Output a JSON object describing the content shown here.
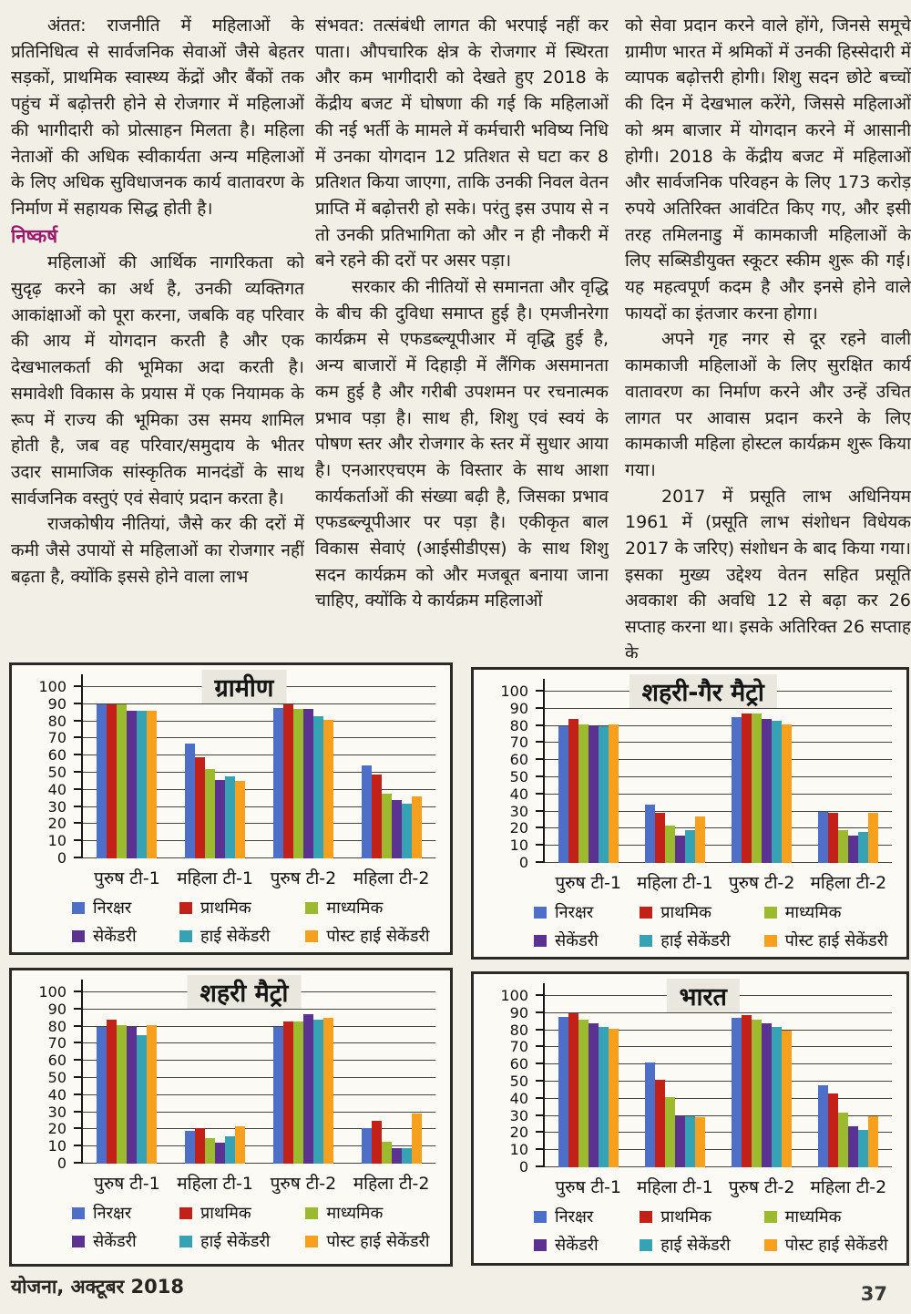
{
  "page": {
    "footer_left": "योजना, अक्टूबर 2018",
    "page_number": "37"
  },
  "article": {
    "columns": [
      {
        "blocks": [
          {
            "type": "para",
            "indent": true,
            "text": "अंतत: राजनीति में महिलाओं के प्रतिनिधित्व से सार्वजनिक सेवाओं जैसे बेहतर सड़कों, प्राथमिक स्वास्थ्य केंद्रों और बैंकों तक पहुंच में बढ़ोत्तरी होने से रोजगार में महिलाओं की भागीदारी को प्रोत्साहन मिलता है। महिला नेताओं की अधिक स्वीकार्यता अन्य महिलाओं के लिए अधिक सुविधाजनक कार्य वातावरण के निर्माण में सहायक सिद्ध होती है।"
          },
          {
            "type": "heading",
            "indent": false,
            "text": "निष्कर्ष"
          },
          {
            "type": "para",
            "indent": true,
            "text": "महिलाओं की आर्थिक नागरिकता को सुदृढ़ करने का अर्थ है, उनकी व्यक्तिगत आकांक्षाओं को पूरा करना, जबकि वह परिवार की आय में योगदान करती है और एक देखभालकर्ता की भूमिका अदा करती है। समावेशी विकास के प्रयास में एक नियामक के रूप में राज्य की भूमिका उस समय शामिल होती है, जब वह परिवार/समुदाय के भीतर उदार सामाजिक सांस्कृतिक मानदंडों के साथ सार्वजनिक वस्तुएं एवं सेवाएं प्रदान करता है।"
          },
          {
            "type": "para",
            "indent": true,
            "text": "राजकोषीय नीतियां, जैसे कर की दरों में कमी जैसे उपायों से महिलाओं का रोजगार नहीं बढ़ता है, क्योंकि इससे होने वाला लाभ"
          }
        ]
      },
      {
        "blocks": [
          {
            "type": "para",
            "indent": false,
            "text": "संभवत: तत्संबंधी लागत की भरपाई नहीं कर पाता। औपचारिक क्षेत्र के रोजगार में स्थिरता और कम भागीदारी को देखते हुए 2018 के केंद्रीय बजट में घोषणा की गई कि महिलाओं की नई भर्ती के मामले में कर्मचारी भविष्य निधि में उनका योगदान 12 प्रतिशत से घटा कर 8 प्रतिशत किया जाएगा, ताकि उनकी निवल वेतन प्राप्ति में बढ़ोत्तरी हो सके। परंतु इस उपाय से न तो उनकी प्रतिभागिता को और न ही नौकरी में बने रहने की दरों पर असर पड़ा।"
          },
          {
            "type": "para",
            "indent": true,
            "text": "सरकार की नीतियों से समानता और वृद्धि के बीच की दुविधा समाप्त हुई है। एमजीनरेगा कार्यक्रम से एफडब्ल्यूपीआर में वृद्धि हुई है, अन्य बाजारों में दिहाड़ी में लैंगिक असमानता कम हुई है और गरीबी उपशमन पर रचनात्मक प्रभाव पड़ा है। साथ ही, शिशु एवं स्वयं के पोषण स्तर और रोजगार के स्तर में सुधार आया है। एनआरएचएम के विस्तार के साथ आशा कार्यकर्ताओं की संख्या बढ़ी है, जिसका प्रभाव एफडब्ल्यूपीआर पर पड़ा है। एकीकृत बाल विकास सेवाएं (आईसीडीएस) के साथ शिशु सदन कार्यक्रम को और मजबूत बनाया जाना चाहिए, क्योंकि ये कार्यक्रम महिलाओं"
          }
        ]
      },
      {
        "blocks": [
          {
            "type": "para",
            "indent": false,
            "text": "को सेवा प्रदान करने वाले होंगे, जिनसे समूचे ग्रामीण भारत में श्रमिकों में उनकी हिस्सेदारी में व्यापक बढ़ोत्तरी होगी। शिशु सदन छोटे बच्चों की दिन में देखभाल करेंगे, जिससे महिलाओं को श्रम बाजार में योगदान करने में आसानी होगी। 2018 के केंद्रीय बजट में महिलाओं और सार्वजनिक परिवहन के लिए 173 करोड़ रुपये अतिरिक्त आवंटित किए गए, और इसी तरह तमिलनाडु में कामकाजी महिलाओं के लिए सब्सिडीयुक्त स्कूटर स्कीम शुरू की गई। यह महत्वपूर्ण कदम है और इनसे होने वाले फायदों का इंतजार करना होगा।"
          },
          {
            "type": "para",
            "indent": true,
            "text": "अपने गृह नगर से दूर रहने वाली कामकाजी महिलाओं के लिए सुरक्षित कार्य वातावरण का निर्माण करने और उन्हें उचित लागत पर आवास प्रदान करने के लिए कामकाजी महिला होस्टल कार्यक्रम शुरू किया गया।"
          },
          {
            "type": "para",
            "indent": true,
            "text": "2017 में प्रसूति लाभ अधिनियम 1961 में (प्रसूति लाभ संशोधन विधेयक 2017 के जरिए) संशोधन के बाद किया गया। इसका मुख्य उद्देश्य वेतन सहित प्रसूति अवकाश की अवधि 12 से बढ़ा कर 26 सप्ताह करना था। इसके अतिरिक्त 26 सप्ताह के"
          }
        ]
      }
    ]
  },
  "chart_data": [
    {
      "type": "bar",
      "title": "ग्रामीण",
      "categories": [
        "पुरुष टी-1",
        "महिला टी-1",
        "पुरुष टी-2",
        "महिला टी-2"
      ],
      "series": [
        {
          "name": "निरक्षर",
          "color": "#4e6fc8",
          "values": [
            90,
            67,
            88,
            54
          ]
        },
        {
          "name": "प्राथमिक",
          "color": "#c32017",
          "values": [
            90,
            59,
            90,
            49
          ]
        },
        {
          "name": "माध्यमिक",
          "color": "#9cba2e",
          "values": [
            90,
            52,
            87,
            38
          ]
        },
        {
          "name": "सेकेंडरी",
          "color": "#5b3191",
          "values": [
            86,
            46,
            87,
            34
          ]
        },
        {
          "name": "हाई सेकेंडरी",
          "color": "#36a3b4",
          "values": [
            86,
            48,
            83,
            32
          ]
        },
        {
          "name": "पोस्ट हाई सेकेंडरी",
          "color": "#f7a01e",
          "values": [
            86,
            45,
            81,
            36
          ]
        }
      ],
      "ylim": [
        0,
        100
      ],
      "yticks": [
        0,
        10,
        20,
        30,
        40,
        50,
        60,
        70,
        80,
        90,
        100
      ],
      "grid": "horizontal",
      "legend_position": "bottom"
    },
    {
      "type": "bar",
      "title": "शहरी-गैर मैट्रो",
      "categories": [
        "पुरुष टी-1",
        "महिला टी-1",
        "पुरुष टी-2",
        "महिला टी-2"
      ],
      "series": [
        {
          "name": "निरक्षर",
          "color": "#4e6fc8",
          "values": [
            80,
            34,
            85,
            30
          ]
        },
        {
          "name": "प्राथमिक",
          "color": "#c32017",
          "values": [
            84,
            29,
            87,
            29
          ]
        },
        {
          "name": "माध्यमिक",
          "color": "#9cba2e",
          "values": [
            81,
            22,
            87,
            19
          ]
        },
        {
          "name": "सेकेंडरी",
          "color": "#5b3191",
          "values": [
            80,
            16,
            84,
            16
          ]
        },
        {
          "name": "हाई सेकेंडरी",
          "color": "#36a3b4",
          "values": [
            80,
            19,
            83,
            18
          ]
        },
        {
          "name": "पोस्ट हाई सेकेंडरी",
          "color": "#f7a01e",
          "values": [
            81,
            27,
            81,
            29
          ]
        }
      ],
      "ylim": [
        0,
        100
      ],
      "yticks": [
        0,
        10,
        20,
        30,
        40,
        50,
        60,
        70,
        80,
        90,
        100
      ],
      "grid": "horizontal",
      "legend_position": "bottom"
    },
    {
      "type": "bar",
      "title": "शहरी मैट्रो",
      "categories": [
        "पुरुष टी-1",
        "महिला टी-1",
        "पुरुष टी-2",
        "महिला टी-2"
      ],
      "series": [
        {
          "name": "निरक्षर",
          "color": "#4e6fc8",
          "values": [
            80,
            19,
            80,
            21
          ]
        },
        {
          "name": "प्राथमिक",
          "color": "#c32017",
          "values": [
            84,
            21,
            83,
            25
          ]
        },
        {
          "name": "माध्यमिक",
          "color": "#9cba2e",
          "values": [
            81,
            15,
            83,
            13
          ]
        },
        {
          "name": "सेकेंडरी",
          "color": "#5b3191",
          "values": [
            80,
            12,
            87,
            9
          ]
        },
        {
          "name": "हाई सेकेंडरी",
          "color": "#36a3b4",
          "values": [
            75,
            16,
            84,
            9
          ]
        },
        {
          "name": "पोस्ट हाई सेकेंडरी",
          "color": "#f7a01e",
          "values": [
            81,
            22,
            85,
            29
          ]
        }
      ],
      "ylim": [
        0,
        100
      ],
      "yticks": [
        0,
        10,
        20,
        30,
        40,
        50,
        60,
        70,
        80,
        90,
        100
      ],
      "grid": "horizontal",
      "legend_position": "bottom"
    },
    {
      "type": "bar",
      "title": "भारत",
      "categories": [
        "पुरुष टी-1",
        "महिला टी-1",
        "पुरुष टी-2",
        "महिला टी-2"
      ],
      "series": [
        {
          "name": "निरक्षर",
          "color": "#4e6fc8",
          "values": [
            88,
            61,
            87,
            48
          ]
        },
        {
          "name": "प्राथमिक",
          "color": "#c32017",
          "values": [
            90,
            51,
            89,
            43
          ]
        },
        {
          "name": "माध्यमिक",
          "color": "#9cba2e",
          "values": [
            86,
            41,
            86,
            32
          ]
        },
        {
          "name": "सेकेंडरी",
          "color": "#5b3191",
          "values": [
            84,
            30,
            84,
            24
          ]
        },
        {
          "name": "हाई सेकेंडरी",
          "color": "#36a3b4",
          "values": [
            82,
            30,
            82,
            22
          ]
        },
        {
          "name": "पोस्ट हाई सेकेंडरी",
          "color": "#f7a01e",
          "values": [
            81,
            29,
            80,
            30
          ]
        }
      ],
      "ylim": [
        0,
        100
      ],
      "yticks": [
        0,
        10,
        20,
        30,
        40,
        50,
        60,
        70,
        80,
        90,
        100
      ],
      "grid": "horizontal",
      "legend_position": "bottom"
    }
  ]
}
